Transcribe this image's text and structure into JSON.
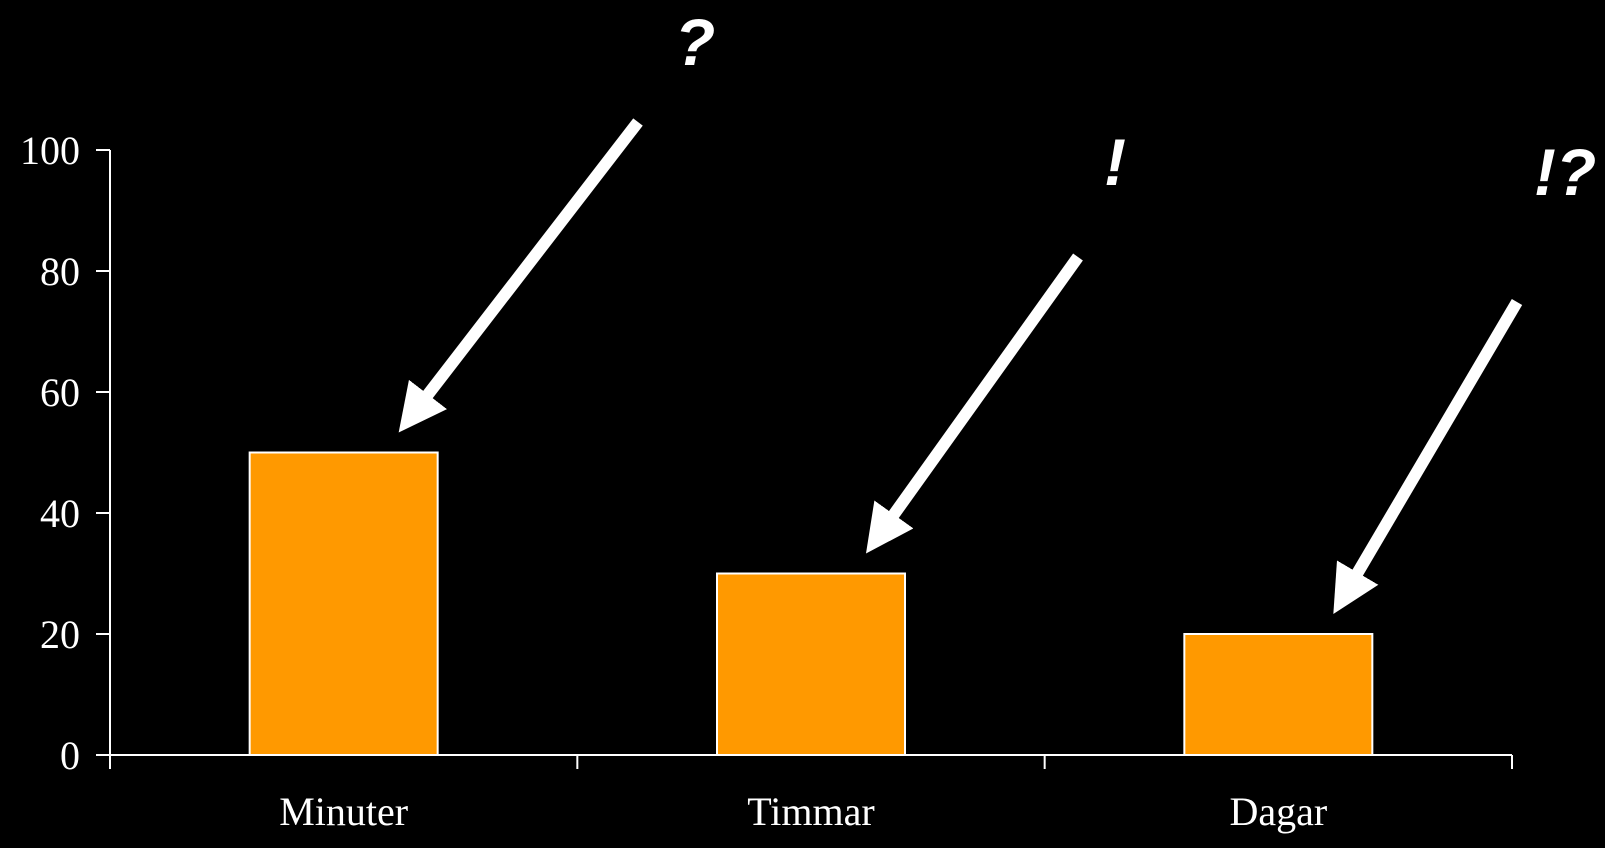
{
  "chart_data": {
    "type": "bar",
    "categories": [
      "Minuter",
      "Timmar",
      "Dagar"
    ],
    "values": [
      50,
      30,
      20
    ],
    "ylim": [
      0,
      100
    ],
    "yticks": [
      0,
      20,
      40,
      60,
      80,
      100
    ],
    "title": "",
    "xlabel": "",
    "ylabel": "",
    "grid": false,
    "legend": "none",
    "colors": {
      "background": "#000000",
      "bar_fill": "#ff9900",
      "bar_stroke": "#ffffff",
      "axis": "#ffffff",
      "text": "#ffffff"
    },
    "annotations": [
      {
        "text": "?",
        "target_category": "Minuter"
      },
      {
        "text": "!",
        "target_category": "Timmar"
      },
      {
        "text": "!?",
        "target_category": "Dagar"
      }
    ]
  }
}
